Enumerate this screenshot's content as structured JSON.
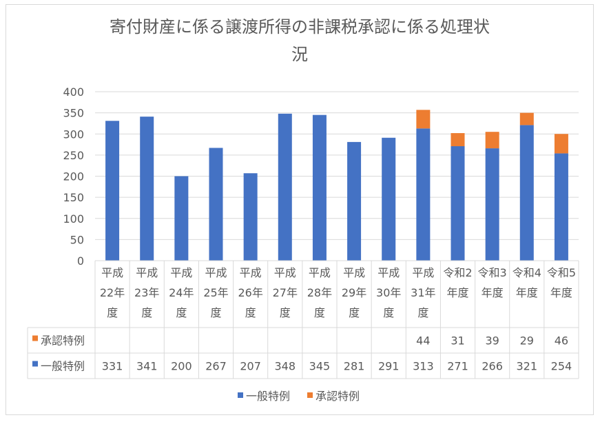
{
  "colors": {
    "general": "#4472C4",
    "approved": "#ED7D31",
    "grid": "#D9D9D9",
    "text": "#595959"
  },
  "chart_data": {
    "type": "bar",
    "stacked": true,
    "title": "寄付財産に係る譲渡所得の非課税承認に係る処理状況",
    "title_lines": [
      "寄付財産に係る譲渡所得の非課税承認に係る処理状",
      "況"
    ],
    "categories": [
      [
        "平成",
        "22年",
        "度"
      ],
      [
        "平成",
        "23年",
        "度"
      ],
      [
        "平成",
        "24年",
        "度"
      ],
      [
        "平成",
        "25年",
        "度"
      ],
      [
        "平成",
        "26年",
        "度"
      ],
      [
        "平成",
        "27年",
        "度"
      ],
      [
        "平成",
        "28年",
        "度"
      ],
      [
        "平成",
        "29年",
        "度"
      ],
      [
        "平成",
        "30年",
        "度"
      ],
      [
        "平成",
        "31年",
        "度"
      ],
      [
        "令和2",
        "年度"
      ],
      [
        "令和3",
        "年度"
      ],
      [
        "令和4",
        "年度"
      ],
      [
        "令和5",
        "年度"
      ]
    ],
    "series": [
      {
        "name": "一般特例",
        "color": "#4472C4",
        "values": [
          331,
          341,
          200,
          267,
          207,
          348,
          345,
          281,
          291,
          313,
          271,
          266,
          321,
          254
        ]
      },
      {
        "name": "承認特例",
        "color": "#ED7D31",
        "values": [
          null,
          null,
          null,
          null,
          null,
          null,
          null,
          null,
          null,
          44,
          31,
          39,
          29,
          46
        ]
      }
    ],
    "ylim": [
      0,
      400
    ],
    "yticks": [
      0,
      50,
      100,
      150,
      200,
      250,
      300,
      350,
      400
    ],
    "grid": true,
    "data_table": true,
    "legend": "bottom"
  }
}
